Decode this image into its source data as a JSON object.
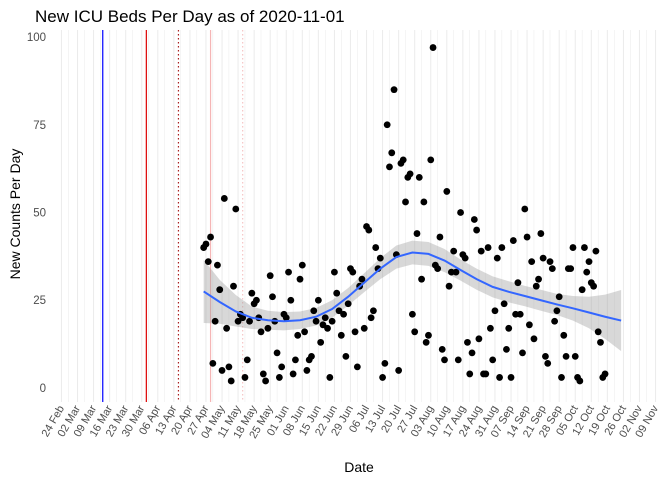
{
  "chart_data": {
    "type": "scatter",
    "title": "New ICU Beds Per Day as of 2020-11-01",
    "xlabel": "Date",
    "ylabel": "New Counts Per Day",
    "x_range": [
      "2020-02-19",
      "2020-11-14"
    ],
    "ylim": [
      -4,
      102
    ],
    "yticks": [
      0,
      25,
      50,
      75,
      100
    ],
    "xticks": [
      {
        "date": "2020-02-24",
        "label": "24 Feb"
      },
      {
        "date": "2020-03-02",
        "label": "02 Mar"
      },
      {
        "date": "2020-03-09",
        "label": "09 Mar"
      },
      {
        "date": "2020-03-16",
        "label": "16 Mar"
      },
      {
        "date": "2020-03-23",
        "label": "23 Mar"
      },
      {
        "date": "2020-03-30",
        "label": "30 Mar"
      },
      {
        "date": "2020-04-06",
        "label": "06 Apr"
      },
      {
        "date": "2020-04-13",
        "label": "13 Apr"
      },
      {
        "date": "2020-04-20",
        "label": "20 Apr"
      },
      {
        "date": "2020-04-27",
        "label": "27 Apr"
      },
      {
        "date": "2020-05-04",
        "label": "04 May"
      },
      {
        "date": "2020-05-11",
        "label": "11 May"
      },
      {
        "date": "2020-05-18",
        "label": "18 May"
      },
      {
        "date": "2020-05-25",
        "label": "25 May"
      },
      {
        "date": "2020-06-01",
        "label": "01 Jun"
      },
      {
        "date": "2020-06-08",
        "label": "08 Jun"
      },
      {
        "date": "2020-06-15",
        "label": "15 Jun"
      },
      {
        "date": "2020-06-22",
        "label": "22 Jun"
      },
      {
        "date": "2020-06-29",
        "label": "29 Jun"
      },
      {
        "date": "2020-07-06",
        "label": "06 Jul"
      },
      {
        "date": "2020-07-13",
        "label": "13 Jul"
      },
      {
        "date": "2020-07-20",
        "label": "20 Jul"
      },
      {
        "date": "2020-07-27",
        "label": "27 Jul"
      },
      {
        "date": "2020-08-03",
        "label": "03 Aug"
      },
      {
        "date": "2020-08-10",
        "label": "10 Aug"
      },
      {
        "date": "2020-08-17",
        "label": "17 Aug"
      },
      {
        "date": "2020-08-24",
        "label": "24 Aug"
      },
      {
        "date": "2020-08-31",
        "label": "31 Aug"
      },
      {
        "date": "2020-09-07",
        "label": "07 Sep"
      },
      {
        "date": "2020-09-14",
        "label": "14 Sep"
      },
      {
        "date": "2020-09-21",
        "label": "21 Sep"
      },
      {
        "date": "2020-09-28",
        "label": "28 Sep"
      },
      {
        "date": "2020-10-05",
        "label": "05 Oct"
      },
      {
        "date": "2020-10-12",
        "label": "12 Oct"
      },
      {
        "date": "2020-10-19",
        "label": "19 Oct"
      },
      {
        "date": "2020-10-26",
        "label": "26 Oct"
      },
      {
        "date": "2020-11-02",
        "label": "02 Nov"
      },
      {
        "date": "2020-11-09",
        "label": "09 Nov"
      }
    ],
    "grid": true,
    "vlines": [
      {
        "date": "2020-03-13",
        "color": "#0000ff",
        "style": "solid"
      },
      {
        "date": "2020-04-01",
        "color": "#dd0000",
        "style": "solid"
      },
      {
        "date": "2020-04-15",
        "color": "#aa2020",
        "style": "dotted"
      },
      {
        "date": "2020-04-29",
        "color": "#f5b5b5",
        "style": "solid"
      },
      {
        "date": "2020-05-13",
        "color": "#f5c5c5",
        "style": "dotted"
      }
    ],
    "points": [
      [
        "2020-04-26",
        40
      ],
      [
        "2020-04-27",
        41
      ],
      [
        "2020-04-28",
        36
      ],
      [
        "2020-04-29",
        43
      ],
      [
        "2020-04-30",
        7
      ],
      [
        "2020-05-01",
        19
      ],
      [
        "2020-05-02",
        35
      ],
      [
        "2020-05-03",
        28
      ],
      [
        "2020-05-04",
        5
      ],
      [
        "2020-05-05",
        54
      ],
      [
        "2020-05-06",
        17
      ],
      [
        "2020-05-07",
        6
      ],
      [
        "2020-05-08",
        2
      ],
      [
        "2020-05-09",
        29
      ],
      [
        "2020-05-10",
        51
      ],
      [
        "2020-05-11",
        19
      ],
      [
        "2020-05-12",
        21
      ],
      [
        "2020-05-13",
        20
      ],
      [
        "2020-05-14",
        3
      ],
      [
        "2020-05-15",
        8
      ],
      [
        "2020-05-16",
        19
      ],
      [
        "2020-05-17",
        27
      ],
      [
        "2020-05-18",
        24
      ],
      [
        "2020-05-19",
        25
      ],
      [
        "2020-05-20",
        20
      ],
      [
        "2020-05-21",
        16
      ],
      [
        "2020-05-22",
        4
      ],
      [
        "2020-05-23",
        2
      ],
      [
        "2020-05-24",
        17
      ],
      [
        "2020-05-25",
        32
      ],
      [
        "2020-05-26",
        26
      ],
      [
        "2020-05-27",
        19
      ],
      [
        "2020-05-28",
        10
      ],
      [
        "2020-05-29",
        3
      ],
      [
        "2020-05-30",
        6
      ],
      [
        "2020-05-31",
        21
      ],
      [
        "2020-06-01",
        20
      ],
      [
        "2020-06-02",
        33
      ],
      [
        "2020-06-03",
        25
      ],
      [
        "2020-06-04",
        4
      ],
      [
        "2020-06-05",
        8
      ],
      [
        "2020-06-06",
        15
      ],
      [
        "2020-06-07",
        31
      ],
      [
        "2020-06-08",
        35
      ],
      [
        "2020-06-09",
        16
      ],
      [
        "2020-06-10",
        5
      ],
      [
        "2020-06-11",
        8
      ],
      [
        "2020-06-12",
        9
      ],
      [
        "2020-06-13",
        22
      ],
      [
        "2020-06-14",
        19
      ],
      [
        "2020-06-15",
        25
      ],
      [
        "2020-06-16",
        13
      ],
      [
        "2020-06-17",
        18
      ],
      [
        "2020-06-18",
        20
      ],
      [
        "2020-06-19",
        17
      ],
      [
        "2020-06-20",
        3
      ],
      [
        "2020-06-21",
        19
      ],
      [
        "2020-06-22",
        33
      ],
      [
        "2020-06-23",
        27
      ],
      [
        "2020-06-24",
        22
      ],
      [
        "2020-06-25",
        15
      ],
      [
        "2020-06-26",
        21
      ],
      [
        "2020-06-27",
        9
      ],
      [
        "2020-06-28",
        24
      ],
      [
        "2020-06-29",
        34
      ],
      [
        "2020-06-30",
        33
      ],
      [
        "2020-07-01",
        16
      ],
      [
        "2020-07-02",
        6
      ],
      [
        "2020-07-03",
        29
      ],
      [
        "2020-07-04",
        31
      ],
      [
        "2020-07-05",
        17
      ],
      [
        "2020-07-06",
        46
      ],
      [
        "2020-07-07",
        45
      ],
      [
        "2020-07-08",
        20
      ],
      [
        "2020-07-09",
        22
      ],
      [
        "2020-07-10",
        40
      ],
      [
        "2020-07-11",
        34
      ],
      [
        "2020-07-12",
        37
      ],
      [
        "2020-07-13",
        3
      ],
      [
        "2020-07-14",
        7
      ],
      [
        "2020-07-15",
        75
      ],
      [
        "2020-07-16",
        63
      ],
      [
        "2020-07-17",
        67
      ],
      [
        "2020-07-18",
        85
      ],
      [
        "2020-07-19",
        38
      ],
      [
        "2020-07-20",
        5
      ],
      [
        "2020-07-21",
        64
      ],
      [
        "2020-07-22",
        65
      ],
      [
        "2020-07-23",
        53
      ],
      [
        "2020-07-24",
        60
      ],
      [
        "2020-07-25",
        61
      ],
      [
        "2020-07-26",
        21
      ],
      [
        "2020-07-27",
        16
      ],
      [
        "2020-07-28",
        44
      ],
      [
        "2020-07-29",
        60
      ],
      [
        "2020-07-30",
        31
      ],
      [
        "2020-07-31",
        53
      ],
      [
        "2020-08-01",
        13
      ],
      [
        "2020-08-02",
        15
      ],
      [
        "2020-08-03",
        65
      ],
      [
        "2020-08-04",
        97
      ],
      [
        "2020-08-05",
        35
      ],
      [
        "2020-08-06",
        34
      ],
      [
        "2020-08-07",
        43
      ],
      [
        "2020-08-08",
        11
      ],
      [
        "2020-08-09",
        8
      ],
      [
        "2020-08-10",
        56
      ],
      [
        "2020-08-11",
        29
      ],
      [
        "2020-08-12",
        33
      ],
      [
        "2020-08-13",
        39
      ],
      [
        "2020-08-14",
        33
      ],
      [
        "2020-08-15",
        8
      ],
      [
        "2020-08-16",
        50
      ],
      [
        "2020-08-17",
        38
      ],
      [
        "2020-08-18",
        37
      ],
      [
        "2020-08-19",
        13
      ],
      [
        "2020-08-20",
        4
      ],
      [
        "2020-08-21",
        10
      ],
      [
        "2020-08-22",
        48
      ],
      [
        "2020-08-23",
        45
      ],
      [
        "2020-08-24",
        14
      ],
      [
        "2020-08-25",
        39
      ],
      [
        "2020-08-26",
        4
      ],
      [
        "2020-08-27",
        4
      ],
      [
        "2020-08-28",
        40
      ],
      [
        "2020-08-29",
        17
      ],
      [
        "2020-08-30",
        8
      ],
      [
        "2020-08-31",
        22
      ],
      [
        "2020-09-01",
        37
      ],
      [
        "2020-09-02",
        3
      ],
      [
        "2020-09-03",
        40
      ],
      [
        "2020-09-04",
        24
      ],
      [
        "2020-09-05",
        11
      ],
      [
        "2020-09-06",
        17
      ],
      [
        "2020-09-07",
        3
      ],
      [
        "2020-09-08",
        42
      ],
      [
        "2020-09-09",
        21
      ],
      [
        "2020-09-10",
        30
      ],
      [
        "2020-09-11",
        21
      ],
      [
        "2020-09-12",
        10
      ],
      [
        "2020-09-13",
        51
      ],
      [
        "2020-09-14",
        43
      ],
      [
        "2020-09-15",
        18
      ],
      [
        "2020-09-16",
        36
      ],
      [
        "2020-09-17",
        14
      ],
      [
        "2020-09-18",
        29
      ],
      [
        "2020-09-19",
        31
      ],
      [
        "2020-09-20",
        44
      ],
      [
        "2020-09-21",
        37
      ],
      [
        "2020-09-22",
        9
      ],
      [
        "2020-09-23",
        7
      ],
      [
        "2020-09-24",
        36
      ],
      [
        "2020-09-25",
        34
      ],
      [
        "2020-09-26",
        19
      ],
      [
        "2020-09-27",
        22
      ],
      [
        "2020-09-28",
        26
      ],
      [
        "2020-09-29",
        3
      ],
      [
        "2020-09-30",
        15
      ],
      [
        "2020-10-01",
        9
      ],
      [
        "2020-10-02",
        34
      ],
      [
        "2020-10-03",
        34
      ],
      [
        "2020-10-04",
        40
      ],
      [
        "2020-10-05",
        9
      ],
      [
        "2020-10-06",
        3
      ],
      [
        "2020-10-07",
        2
      ],
      [
        "2020-10-08",
        28
      ],
      [
        "2020-10-09",
        40
      ],
      [
        "2020-10-10",
        33
      ],
      [
        "2020-10-11",
        36
      ],
      [
        "2020-10-12",
        30
      ],
      [
        "2020-10-13",
        29
      ],
      [
        "2020-10-14",
        39
      ],
      [
        "2020-10-15",
        16
      ],
      [
        "2020-10-16",
        13
      ],
      [
        "2020-10-17",
        3
      ],
      [
        "2020-10-18",
        4
      ]
    ],
    "smooth": [
      [
        "2020-04-26",
        27.5,
        18.5,
        36.5
      ],
      [
        "2020-05-03",
        24.5,
        18.3,
        30.8
      ],
      [
        "2020-05-10",
        21.8,
        17.5,
        26.5
      ],
      [
        "2020-05-17",
        20.0,
        16.8,
        23.2
      ],
      [
        "2020-05-24",
        19.3,
        16.6,
        22.0
      ],
      [
        "2020-05-31",
        19.0,
        16.4,
        21.6
      ],
      [
        "2020-06-07",
        19.3,
        16.8,
        21.8
      ],
      [
        "2020-06-14",
        20.3,
        17.8,
        22.8
      ],
      [
        "2020-06-21",
        22.5,
        20.0,
        25.0
      ],
      [
        "2020-06-28",
        26.0,
        23.5,
        28.5
      ],
      [
        "2020-07-05",
        30.0,
        27.3,
        32.7
      ],
      [
        "2020-07-12",
        34.0,
        31.0,
        37.0
      ],
      [
        "2020-07-19",
        37.3,
        34.0,
        40.6
      ],
      [
        "2020-07-26",
        38.6,
        35.2,
        42.0
      ],
      [
        "2020-08-02",
        38.2,
        34.8,
        41.6
      ],
      [
        "2020-08-09",
        36.3,
        33.0,
        39.6
      ],
      [
        "2020-08-16",
        33.6,
        30.6,
        36.6
      ],
      [
        "2020-08-23",
        31.0,
        28.0,
        34.0
      ],
      [
        "2020-08-30",
        28.8,
        25.8,
        31.8
      ],
      [
        "2020-09-06",
        27.4,
        24.4,
        30.4
      ],
      [
        "2020-09-13",
        26.2,
        23.3,
        29.1
      ],
      [
        "2020-09-20",
        25.0,
        22.0,
        28.0
      ],
      [
        "2020-09-27",
        23.8,
        20.8,
        26.8
      ],
      [
        "2020-10-04",
        22.7,
        19.2,
        26.2
      ],
      [
        "2020-10-11",
        21.5,
        17.0,
        26.0
      ],
      [
        "2020-10-18",
        20.3,
        14.0,
        26.6
      ],
      [
        "2020-10-25",
        19.2,
        10.5,
        27.9
      ]
    ],
    "colors": {
      "points": "#000000",
      "smooth_line": "#3366ff",
      "ribbon": "#999999",
      "grid": "#ebebeb"
    }
  }
}
